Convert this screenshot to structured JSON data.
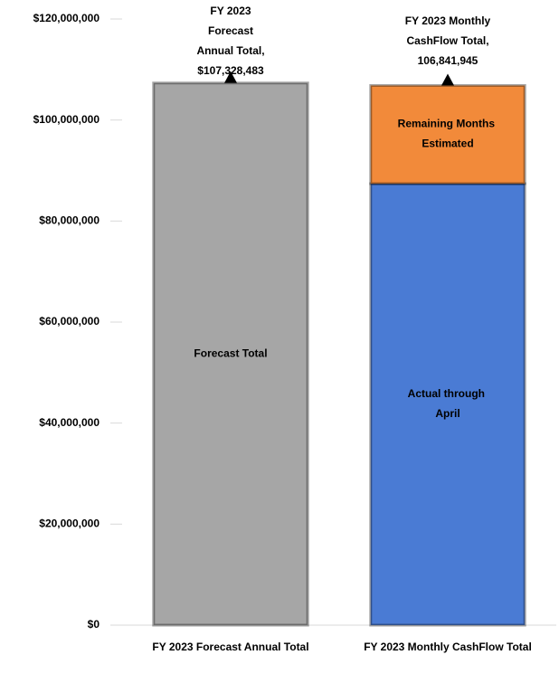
{
  "chart_data": {
    "type": "stacked_bar",
    "categories": [
      "FY 2023 Forecast Annual Total",
      "FY 2023 Monthly CashFlow Total"
    ],
    "series": [
      {
        "name": "Forecast Total",
        "color": "#a6a6a6",
        "values": [
          107328483,
          null
        ]
      },
      {
        "name": "Actual through April",
        "color": "#4a7bd4",
        "values": [
          null,
          87400000
        ]
      },
      {
        "name": "Remaining Months Estimated",
        "color": "#f28a3a",
        "values": [
          null,
          19441945
        ]
      }
    ],
    "ylim": [
      0,
      120000000
    ],
    "yticks": [
      {
        "value": 0,
        "label": "$0"
      },
      {
        "value": 20000000,
        "label": "$20,000,000"
      },
      {
        "value": 40000000,
        "label": "$40,000,000"
      },
      {
        "value": 60000000,
        "label": "$60,000,000"
      },
      {
        "value": 80000000,
        "label": "$80,000,000"
      },
      {
        "value": 100000000,
        "label": "$100,000,000"
      },
      {
        "value": 120000000,
        "label": "$120,000,000"
      }
    ],
    "annotations": [
      {
        "category": 0,
        "value": 107328483,
        "lines": [
          "FY 2023",
          "Forecast",
          "Annual Total,",
          "$107,328,483"
        ]
      },
      {
        "category": 1,
        "value": 106841945,
        "lines": [
          "FY 2023 Monthly",
          "CashFlow Total,",
          "106,841,945"
        ]
      }
    ]
  }
}
